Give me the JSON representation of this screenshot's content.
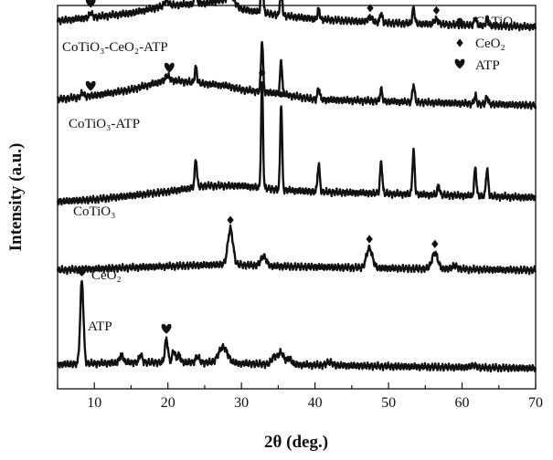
{
  "chart_data": {
    "type": "line",
    "xlabel": "2θ (deg.)",
    "ylabel": "Intensity (a.u.)",
    "xlim": [
      5,
      70
    ],
    "xticks": [
      10,
      20,
      30,
      40,
      50,
      60,
      70
    ],
    "xtick_labels": [
      "10",
      "20",
      "30",
      "40",
      "50",
      "60",
      "70"
    ],
    "y_ticks_shown": false,
    "stacked_offsets": true,
    "legend": {
      "placement": "top-right",
      "items": [
        {
          "marker": "circle",
          "label": "CoTiO₃"
        },
        {
          "marker": "diamond",
          "label": "CeO₂"
        },
        {
          "marker": "heart",
          "label": "ATP"
        }
      ]
    },
    "series": [
      {
        "name": "CoTiO₃-CeO₂-ATP",
        "offset": 0.88,
        "background": [
          [
            5,
            0.02
          ],
          [
            10,
            0.03
          ],
          [
            15,
            0.04
          ],
          [
            20,
            0.06
          ],
          [
            25,
            0.065
          ],
          [
            28,
            0.075
          ],
          [
            30,
            0.05
          ],
          [
            35,
            0.035
          ],
          [
            40,
            0.025
          ],
          [
            50,
            0.015
          ],
          [
            60,
            0.01
          ],
          [
            70,
            0.005
          ]
        ],
        "peaks": [
          [
            9.5,
            0.012,
            0.2
          ],
          [
            19.8,
            0.015,
            0.25
          ],
          [
            23.8,
            0.035,
            0.15
          ],
          [
            28.6,
            0.02,
            0.4
          ],
          [
            32.8,
            0.12,
            0.14
          ],
          [
            35.4,
            0.08,
            0.14
          ],
          [
            40.5,
            0.025,
            0.15
          ],
          [
            47.5,
            0.012,
            0.3
          ],
          [
            49.0,
            0.025,
            0.15
          ],
          [
            53.4,
            0.04,
            0.15
          ],
          [
            56.5,
            0.012,
            0.3
          ],
          [
            61.8,
            0.02,
            0.15
          ],
          [
            63.4,
            0.02,
            0.15
          ]
        ]
      },
      {
        "name": "CoTiO₃-ATP",
        "offset": 0.68,
        "background": [
          [
            5,
            0.02
          ],
          [
            10,
            0.03
          ],
          [
            15,
            0.045
          ],
          [
            20,
            0.07
          ],
          [
            25,
            0.06
          ],
          [
            28,
            0.055
          ],
          [
            30,
            0.045
          ],
          [
            35,
            0.035
          ],
          [
            40,
            0.02
          ],
          [
            50,
            0.015
          ],
          [
            60,
            0.01
          ],
          [
            70,
            0.005
          ]
        ],
        "peaks": [
          [
            8.4,
            0.01,
            0.2
          ],
          [
            19.9,
            0.012,
            0.25
          ],
          [
            23.8,
            0.04,
            0.15
          ],
          [
            32.8,
            0.13,
            0.14
          ],
          [
            35.4,
            0.085,
            0.14
          ],
          [
            40.5,
            0.03,
            0.15
          ],
          [
            49.0,
            0.03,
            0.15
          ],
          [
            53.4,
            0.045,
            0.15
          ],
          [
            61.8,
            0.02,
            0.15
          ],
          [
            63.4,
            0.02,
            0.15
          ]
        ]
      },
      {
        "name": "CoTiO₃",
        "offset": 0.44,
        "background": [
          [
            5,
            0.0
          ],
          [
            10,
            0.005
          ],
          [
            15,
            0.015
          ],
          [
            20,
            0.025
          ],
          [
            25,
            0.04
          ],
          [
            30,
            0.04
          ],
          [
            35,
            0.03
          ],
          [
            40,
            0.025
          ],
          [
            50,
            0.02
          ],
          [
            60,
            0.015
          ],
          [
            70,
            0.01
          ]
        ],
        "peaks": [
          [
            23.8,
            0.07,
            0.15
          ],
          [
            32.8,
            0.27,
            0.13
          ],
          [
            35.4,
            0.22,
            0.13
          ],
          [
            40.5,
            0.07,
            0.15
          ],
          [
            49.0,
            0.08,
            0.15
          ],
          [
            53.4,
            0.11,
            0.15
          ],
          [
            56.8,
            0.025,
            0.15
          ],
          [
            61.8,
            0.07,
            0.15
          ],
          [
            63.4,
            0.07,
            0.15
          ]
        ]
      },
      {
        "name": "CeO₂",
        "offset": 0.265,
        "background": [
          [
            5,
            0.0
          ],
          [
            20,
            0.01
          ],
          [
            28,
            0.015
          ],
          [
            35,
            0.01
          ],
          [
            50,
            0.005
          ],
          [
            70,
            0.0
          ]
        ],
        "peaks": [
          [
            28.5,
            0.09,
            0.35
          ],
          [
            33.0,
            0.025,
            0.35
          ],
          [
            47.4,
            0.05,
            0.4
          ],
          [
            56.3,
            0.04,
            0.4
          ],
          [
            59.0,
            0.008,
            0.4
          ]
        ]
      },
      {
        "name": "ATP",
        "offset": 0.015,
        "background": [
          [
            5,
            0.01
          ],
          [
            15,
            0.015
          ],
          [
            25,
            0.015
          ],
          [
            35,
            0.01
          ],
          [
            50,
            0.005
          ],
          [
            70,
            0.0
          ]
        ],
        "peaks": [
          [
            8.3,
            0.21,
            0.22
          ],
          [
            13.7,
            0.02,
            0.25
          ],
          [
            16.3,
            0.02,
            0.2
          ],
          [
            19.8,
            0.06,
            0.2
          ],
          [
            20.8,
            0.03,
            0.2
          ],
          [
            21.5,
            0.02,
            0.2
          ],
          [
            24.0,
            0.015,
            0.25
          ],
          [
            27.5,
            0.04,
            0.6
          ],
          [
            34.5,
            0.02,
            0.35
          ],
          [
            35.4,
            0.03,
            0.35
          ],
          [
            36.5,
            0.015,
            0.35
          ],
          [
            42.0,
            0.008,
            0.4
          ],
          [
            61.5,
            0.005,
            0.4
          ]
        ]
      }
    ],
    "markers": [
      {
        "series": 0,
        "x": 9.5,
        "symbol": "heart"
      },
      {
        "series": 0,
        "x": 19.8,
        "symbol": "heart"
      },
      {
        "series": 0,
        "x": 28.6,
        "symbol": "diamond"
      },
      {
        "series": 0,
        "x": 32.8,
        "symbol": "circle"
      },
      {
        "series": 0,
        "x": 35.4,
        "symbol": "circle"
      },
      {
        "series": 0,
        "x": 47.5,
        "symbol": "diamond"
      },
      {
        "series": 0,
        "x": 56.5,
        "symbol": "diamond"
      },
      {
        "series": 1,
        "x": 9.5,
        "symbol": "heart"
      },
      {
        "series": 1,
        "x": 20.2,
        "symbol": "heart"
      },
      {
        "series": 2,
        "x": 32.8,
        "symbol": "circle"
      },
      {
        "series": 2,
        "x": 35.4,
        "symbol": "circle"
      },
      {
        "series": 3,
        "x": 28.5,
        "symbol": "diamond"
      },
      {
        "series": 3,
        "x": 47.4,
        "symbol": "diamond"
      },
      {
        "series": 3,
        "x": 56.3,
        "symbol": "diamond"
      },
      {
        "series": 4,
        "x": 8.3,
        "symbol": "heart"
      },
      {
        "series": 4,
        "x": 19.8,
        "symbol": "heart"
      }
    ],
    "colors": {
      "line": "#111111",
      "axis": "#111111",
      "background": "#ffffff"
    }
  }
}
